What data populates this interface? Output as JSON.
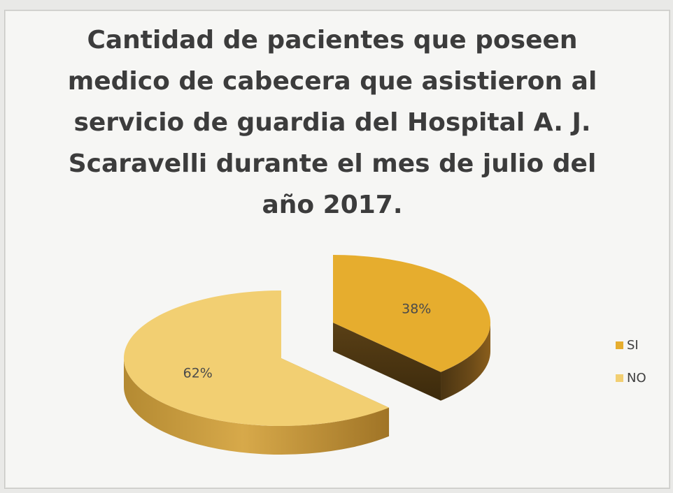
{
  "chart_data": {
    "type": "pie",
    "title": "Cantidad de pacientes que poseen medico de cabecera  que asistieron al servicio de guardia del Hospital A. J. Scaravelli durante el mes de julio del año 2017.",
    "categories": [
      "SI",
      "NO"
    ],
    "values": [
      38,
      62
    ],
    "labels": [
      "38%",
      "62%"
    ],
    "colors": [
      "#e6ad2e",
      "#f2cf72"
    ],
    "legend_position": "right",
    "exploded": true,
    "3d": true
  }
}
